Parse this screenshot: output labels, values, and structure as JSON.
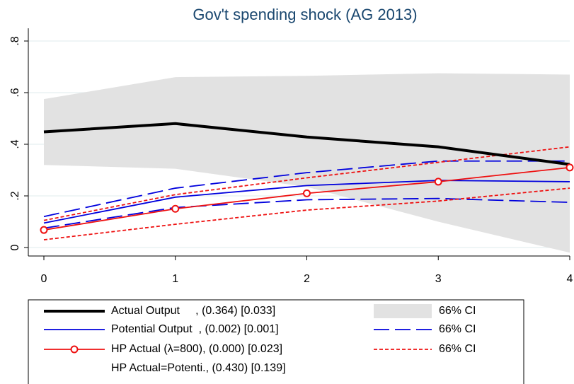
{
  "chart_data": {
    "type": "line",
    "title": "Gov't spending shock (AG 2013)",
    "x": [
      0,
      1,
      2,
      3,
      4
    ],
    "xlim": [
      0,
      4
    ],
    "xticks": [
      0,
      1,
      2,
      3,
      4
    ],
    "ylim": [
      0,
      0.8
    ],
    "yticks": [
      0,
      {
        "value": 0.2,
        "label": ".2"
      },
      {
        "value": 0.4,
        "label": ".4"
      },
      {
        "value": 0.6,
        "label": ".6"
      },
      {
        "value": 0.8,
        "label": ".8"
      }
    ],
    "grid": true,
    "series": [
      {
        "name": "Actual Output     , (0.364) [0.033]",
        "color": "#000000",
        "values": [
          0.448,
          0.48,
          0.428,
          0.39,
          0.322
        ]
      },
      {
        "name": "Potential Output  , (0.002) [0.001]",
        "color": "#0000dd",
        "values": [
          0.095,
          0.195,
          0.24,
          0.26,
          0.255
        ]
      },
      {
        "name": "HP Actual (λ=800), (0.000) [0.023]",
        "color": "#ee1111",
        "values": [
          0.068,
          0.15,
          0.21,
          0.255,
          0.31
        ]
      },
      {
        "name": "HP Actual=Potenti., (0.430) [0.139]"
      }
    ],
    "bands": [
      {
        "name": "66% CI",
        "style": "area",
        "color": "#e2e2e2",
        "upper": [
          0.575,
          0.66,
          0.665,
          0.675,
          0.67
        ],
        "lower": [
          0.32,
          0.305,
          0.235,
          0.1,
          -0.02
        ]
      },
      {
        "name": "66% CI",
        "style": "dash",
        "color": "#0000dd",
        "upper": [
          0.12,
          0.23,
          0.29,
          0.335,
          0.335
        ],
        "lower": [
          0.075,
          0.155,
          0.185,
          0.19,
          0.175
        ]
      },
      {
        "name": "66% CI",
        "style": "dot",
        "color": "#ee1111",
        "upper": [
          0.105,
          0.205,
          0.27,
          0.33,
          0.39
        ],
        "lower": [
          0.03,
          0.09,
          0.145,
          0.18,
          0.23
        ]
      }
    ]
  }
}
